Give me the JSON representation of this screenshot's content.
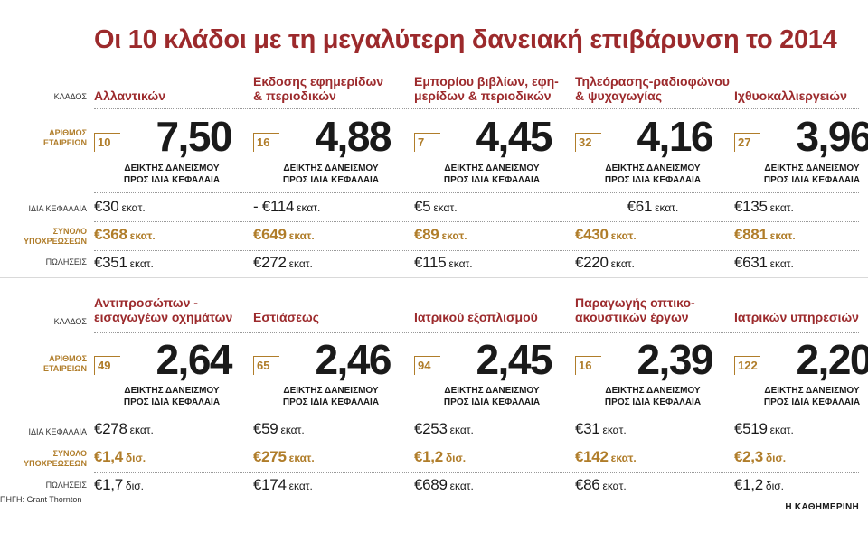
{
  "title": "Οι 10 κλάδοι με τη μεγαλύτερη δανειακή επιβάρυνση το 2014",
  "row_labels": {
    "sector": "ΚΛΑΔΟΣ",
    "companies_line1": "ΑΡΙΘΜΟΣ",
    "companies_line2": "ΕΤΑΙΡΕΙΩΝ",
    "equity": "ΙΔΙΑ ΚΕΦΑΛΑΙΑ",
    "liabilities_line1": "ΣΥΝΟΛΟ",
    "liabilities_line2": "ΥΠΟΧΡΕΩΣΕΩΝ",
    "sales": "ΠΩΛΗΣΕΙΣ"
  },
  "caption_line1": "ΔΕΙΚΤΗΣ ΔΑΝΕΙΣΜΟΥ",
  "caption_line2": "ΠΡΟΣ ΙΔΙΑ ΚΕΦΑΛΑΙΑ",
  "source": "ΠΗΓΗ: Grant Thornton",
  "brand": "Η ΚΑΘΗΜΕΡΙΝΗ",
  "colors": {
    "title": "#9c2a2c",
    "gold": "#b07d2a",
    "text": "#1a1a1a"
  },
  "chart_data": {
    "type": "table",
    "title": "Οι 10 κλάδοι με τη μεγαλύτερη δανειακή επιβάρυνση το 2014",
    "columns": [
      "ΚΛΑΔΟΣ",
      "ΑΡΙΘΜΟΣ ΕΤΑΙΡΕΙΩΝ",
      "ΔΕΙΚΤΗΣ ΔΑΝΕΙΣΜΟΥ ΠΡΟΣ ΙΔΙΑ ΚΕΦΑΛΑΙΑ",
      "ΙΔΙΑ ΚΕΦΑΛΑΙΑ",
      "ΣΥΝΟΛΟ ΥΠΟΧΡΕΩΣΕΩΝ",
      "ΠΩΛΗΣΕΙΣ"
    ],
    "rows": [
      {
        "sector_l1": "Αλλαντικών",
        "sector_l2": "",
        "companies": "10",
        "ratio": "7,50",
        "equity": "€30",
        "equity_unit": "εκατ.",
        "liabilities": "€368",
        "liabilities_unit": "εκατ.",
        "sales": "€351",
        "sales_unit": "εκατ."
      },
      {
        "sector_l1": "Εκδοσης εφημερίδων",
        "sector_l2": "& περιοδικών",
        "companies": "16",
        "ratio": "4,88",
        "equity": "- €114",
        "equity_unit": "εκατ.",
        "liabilities": "€649",
        "liabilities_unit": "εκατ.",
        "sales": "€272",
        "sales_unit": "εκατ."
      },
      {
        "sector_l1": "Εμπορίου βιβλίων, εφη-",
        "sector_l2": "μερίδων & περιοδικών",
        "companies": "7",
        "ratio": "4,45",
        "equity": "€5",
        "equity_unit": "εκατ.",
        "liabilities": "€89",
        "liabilities_unit": "εκατ.",
        "sales": "€115",
        "sales_unit": "εκατ."
      },
      {
        "sector_l1": "Τηλεόρασης-ραδιοφώνου",
        "sector_l2": "& ψυχαγωγίας",
        "companies": "32",
        "ratio": "4,16",
        "equity": "€61",
        "equity_unit": "εκατ.",
        "liabilities": "€430",
        "liabilities_unit": "εκατ.",
        "sales": "€220",
        "sales_unit": "εκατ."
      },
      {
        "sector_l1": "Ιχθυοκαλλιεργειών",
        "sector_l2": "",
        "companies": "27",
        "ratio": "3,96",
        "equity": "€135",
        "equity_unit": "εκατ.",
        "liabilities": "€881",
        "liabilities_unit": "εκατ.",
        "sales": "€631",
        "sales_unit": "εκατ."
      },
      {
        "sector_l1": "Αντιπροσώπων -",
        "sector_l2": "εισαγωγέων οχημάτων",
        "companies": "49",
        "ratio": "2,64",
        "equity": "€278",
        "equity_unit": "εκατ.",
        "liabilities": "€1,4",
        "liabilities_unit": "δισ.",
        "sales": "€1,7",
        "sales_unit": "δισ."
      },
      {
        "sector_l1": "Εστιάσεως",
        "sector_l2": "",
        "companies": "65",
        "ratio": "2,46",
        "equity": "€59",
        "equity_unit": "εκατ.",
        "liabilities": "€275",
        "liabilities_unit": "εκατ.",
        "sales": "€174",
        "sales_unit": "εκατ."
      },
      {
        "sector_l1": "Ιατρικού εξοπλισμού",
        "sector_l2": "",
        "companies": "94",
        "ratio": "2,45",
        "equity": "€253",
        "equity_unit": "εκατ.",
        "liabilities": "€1,2",
        "liabilities_unit": "δισ.",
        "sales": "€689",
        "sales_unit": "εκατ."
      },
      {
        "sector_l1": "Παραγωγής οπτικο-",
        "sector_l2": "ακουστικών έργων",
        "companies": "16",
        "ratio": "2,39",
        "equity": "€31",
        "equity_unit": "εκατ.",
        "liabilities": "€142",
        "liabilities_unit": "εκατ.",
        "sales": "€86",
        "sales_unit": "εκατ."
      },
      {
        "sector_l1": "Ιατρικών υπηρεσιών",
        "sector_l2": "",
        "companies": "122",
        "ratio": "2,20",
        "equity": "€519",
        "equity_unit": "εκατ.",
        "liabilities": "€2,3",
        "liabilities_unit": "δισ.",
        "sales": "€1,2",
        "sales_unit": "δισ."
      }
    ]
  }
}
